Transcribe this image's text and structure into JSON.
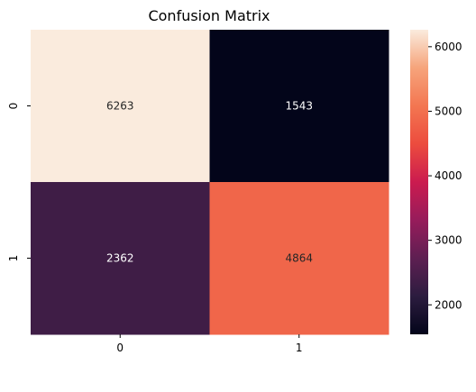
{
  "chart_data": {
    "type": "heatmap",
    "title": "Confusion Matrix",
    "xlabel": "",
    "ylabel": "",
    "x_categories": [
      "0",
      "1"
    ],
    "y_categories": [
      "0",
      "1"
    ],
    "values": [
      [
        6263,
        1543
      ],
      [
        2362,
        4864
      ]
    ],
    "colorbar": {
      "range": [
        1543,
        6263
      ],
      "ticks": [
        2000,
        3000,
        4000,
        5000,
        6000
      ],
      "colormap": "rocket",
      "stops": [
        "#03051a",
        "#2c1c3f",
        "#5e1f52",
        "#971c5b",
        "#cb1b4f",
        "#ec4c3e",
        "#f37651",
        "#f6a47b",
        "#faebdd"
      ]
    },
    "grid": false,
    "legend": "colorbar-right"
  }
}
